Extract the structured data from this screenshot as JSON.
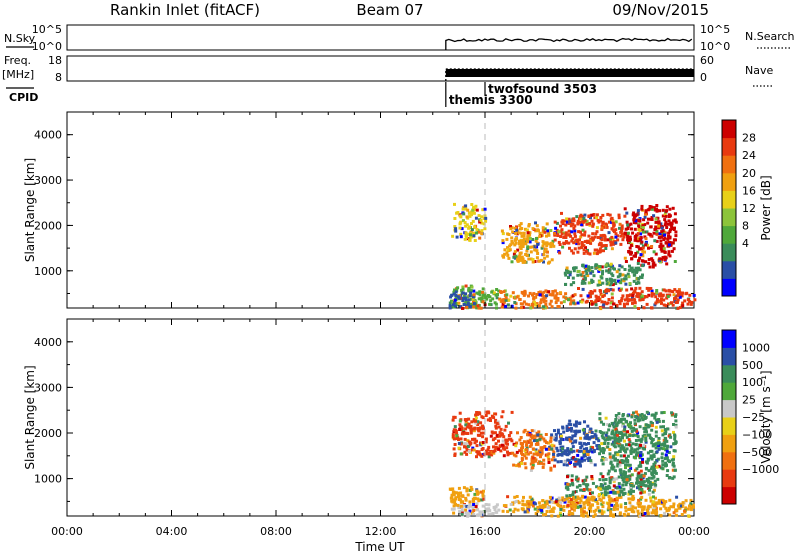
{
  "header": {
    "station": "Rankin Inlet (fitACF)",
    "beam": "Beam 07",
    "date": "09/Nov/2015"
  },
  "top_panels": {
    "nsky": {
      "left_label": "N.Sky",
      "left_ticks": [
        "10^5",
        "10^0"
      ],
      "right_ticks": [
        "10^5",
        "10^0"
      ],
      "right_label": "N.Search"
    },
    "freq": {
      "left_label_1": "Freq.",
      "left_label_2": "[MHz]",
      "left_ticks": [
        "18",
        "8"
      ],
      "right_ticks": [
        "60",
        "0"
      ],
      "right_label": "Nave"
    },
    "cpid": {
      "label": "CPID",
      "programs": [
        {
          "name": "themis 3300",
          "start_hour": 14.5
        },
        {
          "name": "twofsound 3503",
          "start_hour": 16.0
        }
      ]
    }
  },
  "time_axis": {
    "title": "Time UT",
    "ticks": [
      "00:00",
      "04:00",
      "08:00",
      "12:00",
      "16:00",
      "20:00",
      "00:00"
    ]
  },
  "chart_data": [
    {
      "type": "heatmap",
      "name": "power",
      "ylabel": "Slant Range [km]",
      "xlim_hours": [
        0,
        24
      ],
      "ylim_km": [
        180,
        4500
      ],
      "y_ticks": [
        "4000",
        "3000",
        "2000",
        "1000"
      ],
      "colorbar": {
        "label": "Power [dB]",
        "tick_labels": [
          "28",
          "24",
          "20",
          "16",
          "12",
          "8",
          "4"
        ],
        "colors": [
          "#0000ff",
          "#2a4fa6",
          "#3a8c5a",
          "#4fa83a",
          "#8cc43a",
          "#e8d018",
          "#f0a010",
          "#f07010",
          "#e83a10",
          "#cc0000"
        ]
      },
      "data_start_hour": 14.5,
      "blobs": [
        {
          "t0": 14.6,
          "t1": 16.5,
          "r0": 200,
          "r1": 700,
          "color": "#4fa83a"
        },
        {
          "t0": 14.6,
          "t1": 15.6,
          "r0": 200,
          "r1": 600,
          "color": "#2a4fa6"
        },
        {
          "t0": 16.5,
          "t1": 19.5,
          "r0": 200,
          "r1": 600,
          "color": "#f07010"
        },
        {
          "t0": 19.5,
          "t1": 24.0,
          "r0": 200,
          "r1": 650,
          "color": "#e83a10"
        },
        {
          "t0": 14.7,
          "t1": 16.0,
          "r0": 1700,
          "r1": 2500,
          "color": "#e8d018"
        },
        {
          "t0": 16.6,
          "t1": 18.6,
          "r0": 1200,
          "r1": 2100,
          "color": "#f0a010"
        },
        {
          "t0": 18.6,
          "t1": 21.3,
          "r0": 1400,
          "r1": 2300,
          "color": "#e83a10"
        },
        {
          "t0": 21.3,
          "t1": 23.3,
          "r0": 1100,
          "r1": 2500,
          "color": "#cc0000"
        },
        {
          "t0": 19.0,
          "t1": 22.0,
          "r0": 700,
          "r1": 1200,
          "color": "#3a8c5a"
        }
      ]
    },
    {
      "type": "heatmap",
      "name": "velocity",
      "ylabel": "Slant Range [km]",
      "xlim_hours": [
        0,
        24
      ],
      "ylim_km": [
        180,
        4500
      ],
      "y_ticks": [
        "4000",
        "3000",
        "2000",
        "1000"
      ],
      "colorbar": {
        "label": "Velocity [m s⁻¹]",
        "tick_labels": [
          "1000",
          "500",
          "100",
          "25",
          "−25",
          "−100",
          "−500",
          "−1000"
        ],
        "colors": [
          "#cc0000",
          "#e83a10",
          "#f07010",
          "#f0a010",
          "#e8d018",
          "#c8c8c8",
          "#4fa83a",
          "#3a8c5a",
          "#2a4fa6",
          "#0000ff"
        ]
      },
      "data_start_hour": 14.5,
      "blobs": [
        {
          "t0": 14.6,
          "t1": 16.5,
          "r0": 200,
          "r1": 500,
          "color": "#c8c8c8"
        },
        {
          "t0": 14.6,
          "t1": 16.0,
          "r0": 400,
          "r1": 850,
          "color": "#f0a010"
        },
        {
          "t0": 16.5,
          "t1": 24.0,
          "r0": 200,
          "r1": 650,
          "color": "#f0a010"
        },
        {
          "t0": 14.7,
          "t1": 17.0,
          "r0": 1500,
          "r1": 2500,
          "color": "#e83a10"
        },
        {
          "t0": 17.0,
          "t1": 18.6,
          "r0": 1200,
          "r1": 2100,
          "color": "#f07010"
        },
        {
          "t0": 18.6,
          "t1": 20.3,
          "r0": 1300,
          "r1": 2300,
          "color": "#2a4fa6"
        },
        {
          "t0": 20.3,
          "t1": 23.3,
          "r0": 1000,
          "r1": 2500,
          "color": "#3a8c5a"
        },
        {
          "t0": 19.0,
          "t1": 22.5,
          "r0": 650,
          "r1": 1100,
          "color": "#3a8c5a"
        }
      ]
    }
  ]
}
